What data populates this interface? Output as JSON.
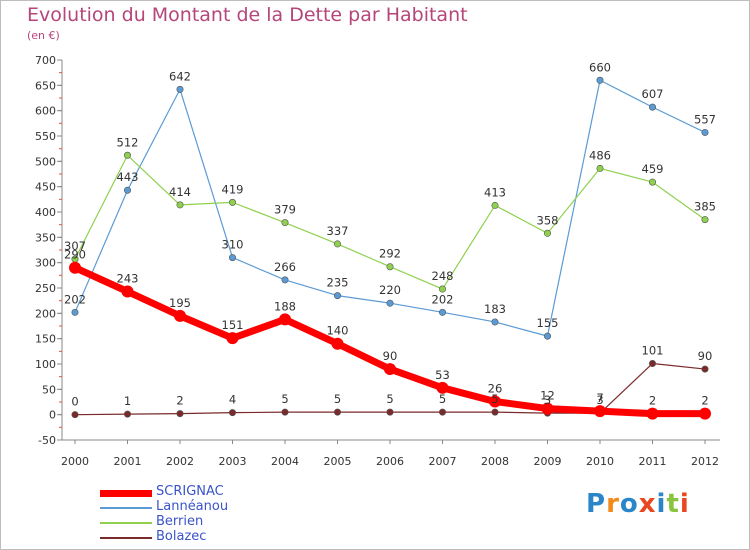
{
  "title": "Evolution du Montant de la Dette par Habitant",
  "subtitle": "(en €)",
  "logo": {
    "text": "Proxiti",
    "colors": [
      "#2a86c8",
      "#f28a1e",
      "#2a86c8",
      "#e8471f",
      "#2a86c8",
      "#8ac43f",
      "#e8471f"
    ]
  },
  "chart_data": {
    "type": "line",
    "title": "Evolution du Montant de la Dette par Habitant",
    "subtitle": "(en €)",
    "x": [
      "2000",
      "2001",
      "2002",
      "2003",
      "2004",
      "2005",
      "2006",
      "2007",
      "2008",
      "2009",
      "2010",
      "2011",
      "2012"
    ],
    "ylim": [
      -50,
      700
    ],
    "yticks": [
      "700",
      "650",
      "600",
      "550",
      "500",
      "450",
      "400",
      "350",
      "300",
      "250",
      "200",
      "150",
      "100",
      "50",
      "0",
      "-50"
    ],
    "grid": false,
    "legend": "bottom-left",
    "series": [
      {
        "name": "Lannéanou",
        "color": "#5b9bd5",
        "width": 1.2,
        "values": [
          202,
          443,
          642,
          310,
          266,
          235,
          220,
          202,
          183,
          155,
          660,
          607,
          557
        ],
        "labels": [
          "202",
          "443",
          "642",
          "310",
          "266",
          "235",
          "220",
          "202",
          "183",
          "155",
          "660",
          "607",
          "557"
        ]
      },
      {
        "name": "Berrien",
        "color": "#8fd14f",
        "width": 1.2,
        "values": [
          307,
          512,
          414,
          419,
          379,
          337,
          292,
          248,
          413,
          358,
          486,
          459,
          385
        ],
        "labels": [
          "307",
          "512",
          "414",
          "419",
          "379",
          "337",
          "292",
          "248",
          "413",
          "358",
          "486",
          "459",
          "385"
        ]
      },
      {
        "name": "Bolazec",
        "color": "#7a2a2a",
        "width": 1.2,
        "values": [
          0,
          1,
          2,
          4,
          5,
          5,
          5,
          5,
          5,
          3,
          3,
          101,
          90
        ],
        "labels": [
          "0",
          "1",
          "2",
          "4",
          "5",
          "5",
          "5",
          "5",
          "5",
          "3",
          "3",
          "101",
          "90"
        ]
      },
      {
        "name": "SCRIGNAC",
        "color": "#ff0000",
        "width": 7,
        "values": [
          290,
          243,
          195,
          151,
          188,
          140,
          90,
          53,
          26,
          12,
          7,
          2,
          2
        ],
        "labels": [
          "290",
          "243",
          "195",
          "151",
          "188",
          "140",
          "90",
          "53",
          "26",
          "12",
          "7",
          "2",
          "2"
        ]
      }
    ]
  },
  "legend_items": [
    {
      "name": "SCRIGNAC",
      "color": "#ff0000",
      "text_color": "#3a54c8",
      "thick": true
    },
    {
      "name": "Lannéanou",
      "color": "#5b9bd5",
      "text_color": "#3a54c8",
      "thick": false
    },
    {
      "name": "Berrien",
      "color": "#8fd14f",
      "text_color": "#3a54c8",
      "thick": false
    },
    {
      "name": "Bolazec",
      "color": "#7a2a2a",
      "text_color": "#3a54c8",
      "thick": false
    }
  ]
}
